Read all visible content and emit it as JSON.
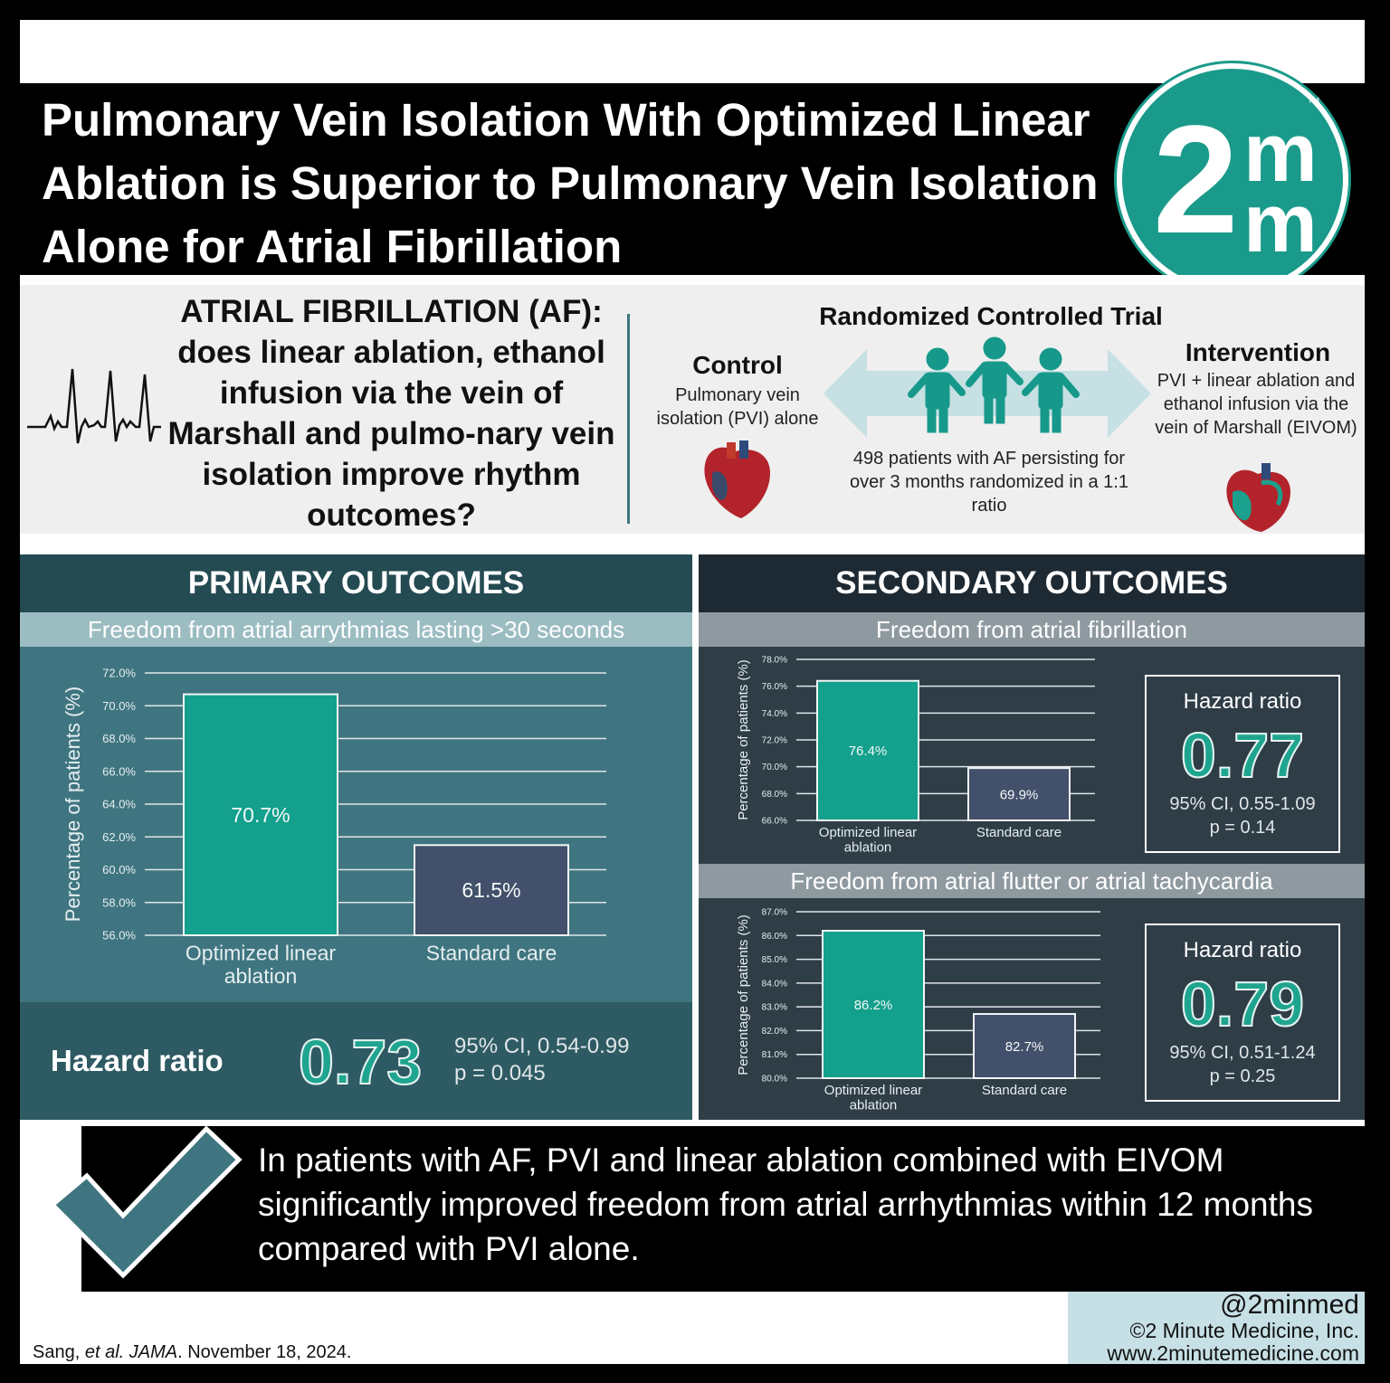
{
  "title": "Pulmonary Vein Isolation With Optimized Linear Ablation is Superior to Pulmonary Vein Isolation Alone for Atrial Fibrillation",
  "logo": {
    "text": "2mm",
    "tm": "TM",
    "color": "#1a9a8a"
  },
  "intro": {
    "question": "ATRIAL FIBRILLATION (AF): does linear ablation, ethanol infusion via the vein of Marshall and pulmo-nary vein isolation improve rhythm outcomes?",
    "trial_type": "Randomized Controlled Trial",
    "control": {
      "title": "Control",
      "desc": "Pulmonary vein isolation (PVI) alone"
    },
    "intervention": {
      "title": "Intervention",
      "desc": "PVI + linear ablation and ethanol infusion via the vein of Marshall (EIVOM)"
    },
    "patients": "498 patients with AF persisting for over 3 months randomized in a 1:1 ratio",
    "icons": [
      "ecg-icon",
      "double-arrow-icon",
      "people-icon",
      "heart-icon"
    ]
  },
  "primary": {
    "heading": "PRIMARY OUTCOMES",
    "subheading": "Freedom from atrial arrythmias lasting >30 seconds",
    "hazard": {
      "label": "Hazard ratio",
      "value": "0.73",
      "ci": "95% CI, 0.54-0.99",
      "p": "p = 0.045"
    }
  },
  "secondary": {
    "heading": "SECONDARY OUTCOMES",
    "sub1": "Freedom from atrial fibrillation",
    "hazard1": {
      "label": "Hazard ratio",
      "value": "0.77",
      "ci": "95% CI, 0.55-1.09",
      "p": "p = 0.14"
    },
    "sub2": "Freedom from atrial flutter or atrial tachycardia",
    "hazard2": {
      "label": "Hazard ratio",
      "value": "0.79",
      "ci": "95% CI, 0.51-1.24",
      "p": "p = 0.25"
    }
  },
  "chart_data": [
    {
      "type": "bar",
      "title": "Freedom from atrial arrythmias lasting >30 seconds",
      "ylabel": "Percentage of patients (%)",
      "categories": [
        "Optimized linear ablation",
        "Standard care"
      ],
      "values": [
        70.7,
        61.5
      ],
      "data_labels": [
        "70.7%",
        "61.5%"
      ],
      "ylim": [
        56,
        72
      ],
      "yticks": [
        "56.0%",
        "58.0%",
        "60.0%",
        "62.0%",
        "64.0%",
        "66.0%",
        "68.0%",
        "70.0%",
        "72.0%"
      ],
      "grid": true,
      "colors": [
        "#13a08c",
        "#43506b"
      ]
    },
    {
      "type": "bar",
      "title": "Freedom from atrial fibrillation",
      "ylabel": "Percentage of patients (%)",
      "categories": [
        "Optimized linear ablation",
        "Standard care"
      ],
      "values": [
        76.4,
        69.9
      ],
      "data_labels": [
        "76.4%",
        "69.9%"
      ],
      "ylim": [
        66,
        78
      ],
      "yticks": [
        "66.0%",
        "68.0%",
        "70.0%",
        "72.0%",
        "74.0%",
        "76.0%",
        "78.0%"
      ],
      "grid": true,
      "colors": [
        "#13a08c",
        "#43506b"
      ]
    },
    {
      "type": "bar",
      "title": "Freedom from atrial flutter or atrial tachycardia",
      "ylabel": "Percentage of patients (%)",
      "categories": [
        "Optimized linear ablation",
        "Standard care"
      ],
      "values": [
        86.2,
        82.7
      ],
      "data_labels": [
        "86.2%",
        "82.7%"
      ],
      "ylim": [
        80,
        87
      ],
      "yticks": [
        "80.0%",
        "81.0%",
        "82.0%",
        "83.0%",
        "84.0%",
        "85.0%",
        "86.0%",
        "87.0%"
      ],
      "grid": true,
      "colors": [
        "#13a08c",
        "#43506b"
      ]
    }
  ],
  "conclusion": "In patients with AF, PVI and linear ablation combined with EIVOM significantly improved freedom from atrial arrhythmias within 12 months compared with PVI alone.",
  "footer": {
    "handle": "@2minmed",
    "copyright": "©2 Minute Medicine, Inc.",
    "url": "www.2minutemedicine.com"
  },
  "citation": {
    "authors": "Sang, ",
    "etal": "et al.",
    "journal": "JAMA",
    "date": ". November 18, 2024."
  }
}
